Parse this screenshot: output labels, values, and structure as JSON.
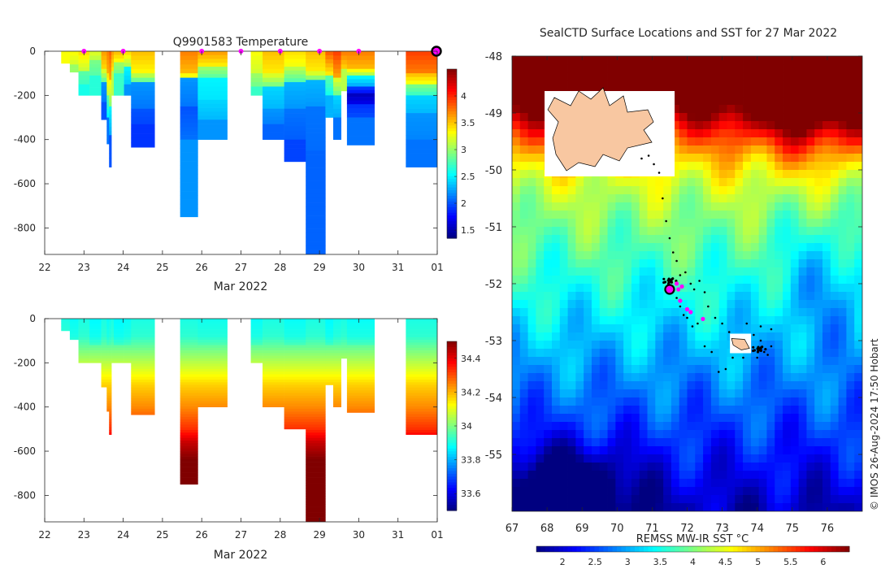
{
  "chart_data": [
    {
      "type": "heatmap",
      "title": "Q9901583  Temperature",
      "xlabel": "Mar 2022",
      "ylabel": "",
      "xlim": [
        22,
        32
      ],
      "ylim": [
        -920,
        0
      ],
      "x_tick_labels": [
        "22",
        "23",
        "24",
        "25",
        "26",
        "27",
        "28",
        "29",
        "30",
        "31",
        "01"
      ],
      "y_ticks": [
        0,
        -200,
        -400,
        -600,
        -800
      ],
      "y_tick_labels": [
        "0",
        "-200",
        "-400",
        "-600",
        "-800"
      ],
      "colorbar": {
        "ticks": [
          1.5,
          2,
          2.5,
          3,
          3.5,
          4
        ],
        "tick_labels": [
          "1.5",
          "2",
          "2.5",
          "3",
          "3.5",
          "4"
        ],
        "range": [
          1.35,
          4.5
        ]
      },
      "surface_markers_days": [
        23,
        24,
        26,
        27,
        28,
        29,
        30
      ],
      "current_marker_day": 32,
      "profiles": [
        {
          "x": 22.42,
          "w": 0.22,
          "depth": 55,
          "layers": [
            [
              0,
              3.3
            ]
          ]
        },
        {
          "x": 22.64,
          "w": 0.22,
          "depth": 95,
          "layers": [
            [
              0,
              3.3
            ],
            [
              60,
              3.0
            ]
          ]
        },
        {
          "x": 22.86,
          "w": 0.28,
          "depth": 200,
          "layers": [
            [
              0,
              3.4
            ],
            [
              90,
              2.8
            ],
            [
              150,
              2.6
            ]
          ]
        },
        {
          "x": 23.14,
          "w": 0.3,
          "depth": 200,
          "layers": [
            [
              0,
              3.2
            ],
            [
              40,
              2.9
            ],
            [
              110,
              2.65
            ]
          ]
        },
        {
          "x": 23.44,
          "w": 0.14,
          "depth": 310,
          "layers": [
            [
              0,
              3.6
            ],
            [
              80,
              3.2
            ],
            [
              140,
              2.2
            ],
            [
              230,
              2.0
            ]
          ]
        },
        {
          "x": 23.58,
          "w": 0.06,
          "depth": 420,
          "layers": [
            [
              0,
              3.7
            ],
            [
              100,
              3.4
            ],
            [
              200,
              2.8
            ],
            [
              300,
              2.1
            ]
          ]
        },
        {
          "x": 23.64,
          "w": 0.06,
          "depth": 525,
          "layers": [
            [
              0,
              3.8
            ],
            [
              130,
              3.3
            ],
            [
              250,
              2.5
            ],
            [
              380,
              2.0
            ]
          ]
        },
        {
          "x": 23.7,
          "w": 0.06,
          "depth": 200,
          "layers": [
            [
              0,
              3.6
            ],
            [
              90,
              3.1
            ]
          ]
        },
        {
          "x": 23.76,
          "w": 0.26,
          "depth": 200,
          "layers": [
            [
              0,
              3.5
            ],
            [
              50,
              3.0
            ],
            [
              100,
              2.7
            ]
          ]
        },
        {
          "x": 24.02,
          "w": 0.18,
          "depth": 200,
          "layers": [
            [
              0,
              3.4
            ],
            [
              70,
              2.5
            ],
            [
              150,
              2.2
            ]
          ]
        },
        {
          "x": 24.2,
          "w": 0.6,
          "depth": 435,
          "layers": [
            [
              0,
              3.5
            ],
            [
              100,
              3.1
            ],
            [
              140,
              2.2
            ],
            [
              260,
              2.0
            ],
            [
              330,
              1.9
            ]
          ]
        },
        {
          "x": 25.45,
          "w": 0.45,
          "depth": 750,
          "layers": [
            [
              0,
              3.7
            ],
            [
              100,
              3.3
            ],
            [
              120,
              2.2
            ],
            [
              250,
              2.0
            ],
            [
              400,
              2.2
            ]
          ]
        },
        {
          "x": 25.9,
          "w": 0.75,
          "depth": 400,
          "layers": [
            [
              0,
              3.6
            ],
            [
              70,
              3.0
            ],
            [
              120,
              2.5
            ],
            [
              220,
              2.4
            ],
            [
              310,
              2.2
            ]
          ]
        },
        {
          "x": 27.25,
          "w": 0.3,
          "depth": 200,
          "layers": [
            [
              0,
              3.3
            ],
            [
              100,
              3.0
            ],
            [
              160,
              2.7
            ]
          ]
        },
        {
          "x": 27.55,
          "w": 0.55,
          "depth": 400,
          "layers": [
            [
              0,
              3.5
            ],
            [
              100,
              3.2
            ],
            [
              160,
              2.4
            ],
            [
              260,
              2.2
            ],
            [
              330,
              2.05
            ]
          ]
        },
        {
          "x": 28.1,
          "w": 0.55,
          "depth": 500,
          "layers": [
            [
              0,
              3.4
            ],
            [
              70,
              3.1
            ],
            [
              140,
              2.3
            ],
            [
              260,
              2.1
            ],
            [
              400,
              1.95
            ]
          ]
        },
        {
          "x": 28.65,
          "w": 0.5,
          "depth": 920,
          "layers": [
            [
              0,
              3.5
            ],
            [
              90,
              3.2
            ],
            [
              130,
              2.3
            ],
            [
              250,
              2.1
            ],
            [
              450,
              2.05
            ]
          ]
        },
        {
          "x": 29.15,
          "w": 0.2,
          "depth": 300,
          "layers": [
            [
              0,
              3.8
            ],
            [
              110,
              2.8
            ],
            [
              200,
              2.3
            ]
          ]
        },
        {
          "x": 29.35,
          "w": 0.2,
          "depth": 400,
          "layers": [
            [
              0,
              3.9
            ],
            [
              120,
              3.2
            ],
            [
              200,
              2.4
            ],
            [
              300,
              2.1
            ]
          ]
        },
        {
          "x": 29.55,
          "w": 0.15,
          "depth": 180,
          "layers": [
            [
              0,
              3.7
            ],
            [
              80,
              3.1
            ]
          ]
        },
        {
          "x": 29.7,
          "w": 0.7,
          "depth": 425,
          "layers": [
            [
              0,
              3.7
            ],
            [
              80,
              3.3
            ],
            [
              110,
              2.5
            ],
            [
              160,
              1.9
            ],
            [
              190,
              1.55
            ],
            [
              240,
              1.9
            ],
            [
              300,
              2.1
            ]
          ]
        },
        {
          "x": 31.2,
          "w": 0.8,
          "depth": 525,
          "layers": [
            [
              0,
              3.9
            ],
            [
              100,
              3.5
            ],
            [
              150,
              2.9
            ],
            [
              200,
              2.4
            ],
            [
              280,
              2.2
            ],
            [
              400,
              2.1
            ]
          ]
        }
      ]
    },
    {
      "type": "heatmap",
      "title": "",
      "xlabel": "Mar 2022",
      "ylabel": "",
      "xlim": [
        22,
        32
      ],
      "ylim": [
        -920,
        0
      ],
      "x_tick_labels": [
        "22",
        "23",
        "24",
        "25",
        "26",
        "27",
        "28",
        "29",
        "30",
        "31",
        "01"
      ],
      "y_ticks": [
        0,
        -200,
        -400,
        -600,
        -800
      ],
      "y_tick_labels": [
        "0",
        "-200",
        "-400",
        "-600",
        "-800"
      ],
      "colorbar": {
        "ticks": [
          33.6,
          33.8,
          34.0,
          34.2,
          34.4
        ],
        "tick_labels": [
          "33.6",
          "33.8",
          "34",
          "34.2",
          "34.4"
        ],
        "range": [
          33.5,
          34.5
        ]
      },
      "depth_profile": [
        [
          0,
          33.9
        ],
        [
          80,
          33.92
        ],
        [
          140,
          33.99
        ],
        [
          220,
          34.08
        ],
        [
          300,
          34.17
        ],
        [
          400,
          34.24
        ],
        [
          500,
          34.33
        ],
        [
          560,
          34.43
        ],
        [
          640,
          34.5
        ]
      ],
      "profile_top_fresh": [
        0,
        0.02,
        0,
        0.03,
        0,
        0.02,
        0.01,
        0,
        0.03,
        0.02,
        0,
        0,
        0.01,
        0.02,
        0,
        0.02,
        0,
        0.03,
        0.01,
        0,
        0.02,
        0
      ],
      "profiles_ref": "same geometry as chart 0"
    },
    {
      "type": "heatmap",
      "title": "SealCTD Surface Locations and SST for 27 Mar 2022",
      "xlabel": "",
      "ylabel": "",
      "xlim": [
        67,
        77
      ],
      "ylim": [
        -56,
        -48
      ],
      "x_tick_labels": [
        "67",
        "68",
        "69",
        "70",
        "71",
        "72",
        "73",
        "74",
        "75",
        "76"
      ],
      "y_tick_labels": [
        "-48",
        "-49",
        "-50",
        "-51",
        "-52",
        "-53",
        "-54",
        "-55"
      ],
      "colorbar": {
        "label": "REMSS MW-IR SST °C",
        "ticks": [
          2,
          2.5,
          3,
          3.5,
          4,
          4.5,
          5,
          5.5,
          6
        ],
        "tick_labels": [
          "2",
          "2.5",
          "3",
          "3.5",
          "4",
          "4.5",
          "5",
          "5.5",
          "6"
        ],
        "range": [
          1.6,
          6.4
        ]
      },
      "islands": [
        {
          "name": "Kerguelen",
          "lon": 69.6,
          "lat": -49.3
        },
        {
          "name": "Heard",
          "lon": 73.5,
          "lat": -53.05
        }
      ],
      "track_points": [
        [
          70.9,
          -49.75
        ],
        [
          70.7,
          -49.8
        ],
        [
          71.05,
          -49.9
        ],
        [
          71.2,
          -50.05
        ],
        [
          71.3,
          -50.5
        ],
        [
          71.4,
          -50.9
        ],
        [
          71.5,
          -51.2
        ],
        [
          71.6,
          -51.45
        ],
        [
          71.7,
          -51.6
        ],
        [
          71.8,
          -51.85
        ],
        [
          71.95,
          -51.8
        ],
        [
          72.1,
          -52.0
        ],
        [
          72.2,
          -52.1
        ],
        [
          72.35,
          -51.95
        ],
        [
          72.5,
          -52.15
        ],
        [
          72.6,
          -52.4
        ],
        [
          72.8,
          -52.6
        ],
        [
          73.0,
          -52.7
        ],
        [
          73.2,
          -52.85
        ],
        [
          73.7,
          -52.7
        ],
        [
          73.9,
          -52.9
        ],
        [
          74.1,
          -53.0
        ],
        [
          74.2,
          -53.2
        ],
        [
          74.0,
          -53.3
        ],
        [
          73.6,
          -53.3
        ],
        [
          73.3,
          -53.3
        ],
        [
          73.1,
          -53.5
        ],
        [
          72.9,
          -53.55
        ],
        [
          72.7,
          -53.2
        ],
        [
          72.5,
          -53.1
        ],
        [
          72.3,
          -52.7
        ],
        [
          72.0,
          -52.6
        ],
        [
          71.8,
          -52.4
        ],
        [
          71.7,
          -52.25
        ],
        [
          71.9,
          -52.55
        ],
        [
          72.15,
          -52.75
        ],
        [
          74.4,
          -53.1
        ],
        [
          74.4,
          -52.8
        ],
        [
          74.3,
          -53.25
        ],
        [
          74.1,
          -52.75
        ]
      ],
      "track_clusters": [
        [
          71.5,
          -51.95
        ],
        [
          74.05,
          -53.15
        ]
      ],
      "surface_markers": [
        [
          71.75,
          -52.1
        ],
        [
          71.8,
          -52.3
        ],
        [
          72.0,
          -52.45
        ],
        [
          72.1,
          -52.5
        ],
        [
          72.45,
          -52.62
        ],
        [
          71.85,
          -52.05
        ],
        [
          71.7,
          -52.0
        ]
      ],
      "current_location": [
        71.5,
        -52.1
      ]
    }
  ],
  "watermark": "© IMOS 26-Aug-2024 17:50 Hobart"
}
